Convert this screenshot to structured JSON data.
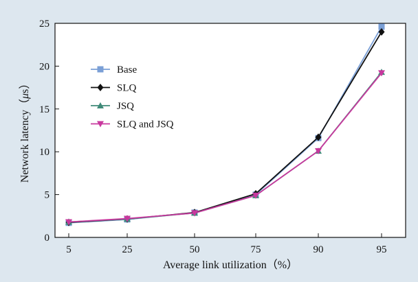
{
  "chart_data": {
    "type": "line",
    "xlabel": "Average link utilization（%）",
    "ylabel_prefix": "Network latency（",
    "ylabel_mu": "μ",
    "ylabel_suffix": "s）",
    "categories": [
      "5",
      "25",
      "50",
      "75",
      "90",
      "95"
    ],
    "ylim": [
      0,
      25
    ],
    "yticks": [
      0,
      5,
      10,
      15,
      20,
      25
    ],
    "grid": false,
    "legend_position": "upper-left",
    "series": [
      {
        "name": "Base",
        "color": "#7a9fd6",
        "marker": "square",
        "values": [
          1.7,
          2.1,
          2.9,
          5.0,
          11.6,
          24.6
        ]
      },
      {
        "name": "SLQ",
        "color": "#111111",
        "marker": "diamond",
        "values": [
          1.75,
          2.15,
          2.9,
          5.1,
          11.7,
          24.0
        ]
      },
      {
        "name": "JSQ",
        "color": "#3f8a78",
        "marker": "triangle-up",
        "values": [
          1.8,
          2.15,
          2.85,
          4.9,
          10.1,
          19.3
        ]
      },
      {
        "name": "SLQ and JSQ",
        "color": "#c8389e",
        "marker": "triangle-down",
        "values": [
          1.8,
          2.2,
          2.85,
          4.9,
          10.1,
          19.2
        ]
      }
    ]
  }
}
